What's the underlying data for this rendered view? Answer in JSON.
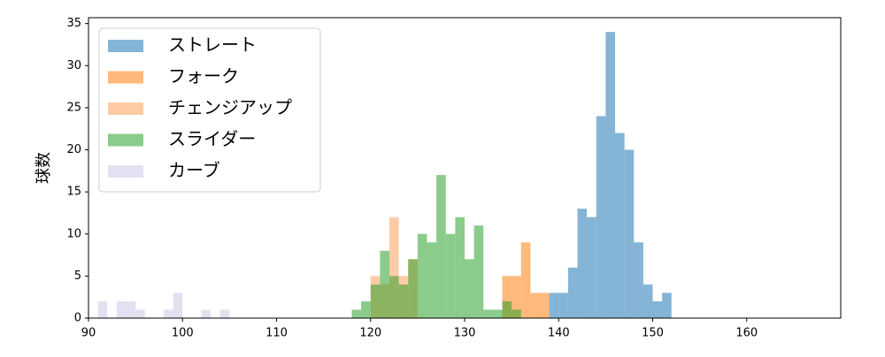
{
  "chart_data": {
    "type": "histogram",
    "y_label": "球数",
    "xlim": [
      90,
      170
    ],
    "ylim": [
      0,
      35.7
    ],
    "xticks": [
      90,
      100,
      110,
      120,
      130,
      140,
      150,
      160
    ],
    "yticks": [
      0,
      5,
      10,
      15,
      20,
      25,
      30,
      35
    ],
    "legend": "upper left",
    "series": [
      {
        "name": "ストレート",
        "color": "#1f77b4",
        "bins": [
          139,
          140,
          141,
          142,
          143,
          144,
          145,
          146,
          147,
          148,
          149,
          150,
          151,
          152
        ],
        "values": [
          3,
          3,
          6,
          13,
          12,
          24,
          34,
          22,
          20,
          9,
          4,
          2,
          3
        ]
      },
      {
        "name": "フォーク",
        "color": "#ff7f0e",
        "bins": [
          134,
          135,
          136,
          137,
          138,
          139
        ],
        "values": [
          5,
          5,
          9,
          3,
          3
        ]
      },
      {
        "name": "チェンジアップ",
        "color": "#ffa05a",
        "bins": [
          120,
          121,
          122,
          123,
          124,
          125
        ],
        "values": [
          5,
          4,
          12,
          5,
          7
        ]
      },
      {
        "name": "スライダー",
        "color": "#2ca02c",
        "bins": [
          118,
          119,
          120,
          121,
          122,
          123,
          124,
          125,
          126,
          127,
          128,
          129,
          130,
          131,
          132,
          133,
          134,
          135,
          136
        ],
        "values": [
          1,
          2,
          4,
          8,
          5,
          4,
          7,
          10,
          9,
          17,
          10,
          12,
          7,
          11,
          1,
          1,
          2,
          1
        ]
      },
      {
        "name": "カーブ",
        "color": "#c8c8e6",
        "bins": [
          91,
          92,
          93,
          94,
          95,
          96,
          97,
          98,
          99,
          100,
          101,
          102,
          103,
          104,
          105
        ],
        "values": [
          2,
          0,
          2,
          2,
          1,
          0,
          0,
          1,
          3,
          0,
          0,
          1,
          0,
          1
        ]
      }
    ]
  }
}
